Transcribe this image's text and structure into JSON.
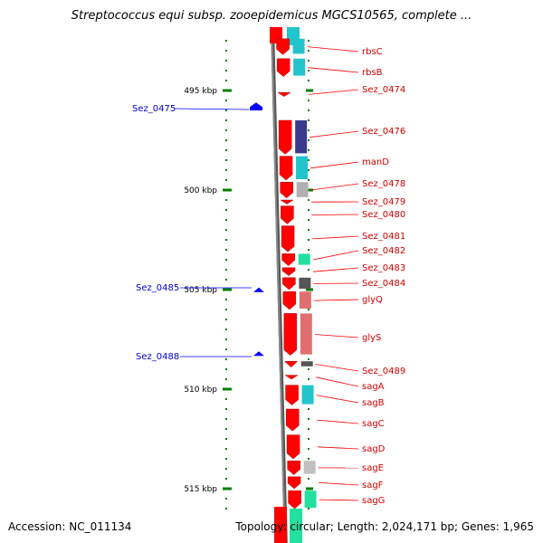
{
  "title": "Streptococcus equi subsp. zooepidemicus MGCS10565, complete ...",
  "footer": {
    "accession": "Accession: NC_011134",
    "stats": "Topology: circular; Length: 2,024,171 bp; Genes: 1,965"
  },
  "colors": {
    "backbone": "#888888",
    "forward_gene": "#ff0000",
    "forward_label": "#d00000",
    "reverse_gene": "#0000ff",
    "reverse_label": "#0000cc",
    "ruler": "#008000"
  },
  "ruler": {
    "ticks": [
      {
        "label": "495 kbp",
        "kbp": 495
      },
      {
        "label": "500 kbp",
        "kbp": 500
      },
      {
        "label": "505 kbp",
        "kbp": 505
      },
      {
        "label": "510 kbp",
        "kbp": 510
      },
      {
        "label": "515 kbp",
        "kbp": 515
      }
    ]
  },
  "forward_genes": [
    {
      "label": "rbsC",
      "start_kbp": 492.4,
      "end_kbp": 493.2,
      "cog_color": "#22c4cc"
    },
    {
      "label": "rbsB",
      "start_kbp": 493.4,
      "end_kbp": 494.3,
      "cog_color": "#22c4cc"
    },
    {
      "label": "Sez_0474",
      "start_kbp": 495.1,
      "end_kbp": 495.3,
      "cog_color": ""
    },
    {
      "label": "Sez_0476",
      "start_kbp": 496.5,
      "end_kbp": 498.2,
      "cog_color": "#3a3a8c"
    },
    {
      "label": "manD",
      "start_kbp": 498.3,
      "end_kbp": 499.5,
      "cog_color": "#22c4cc"
    },
    {
      "label": "Sez_0478",
      "start_kbp": 499.6,
      "end_kbp": 500.4,
      "cog_color": "#b0b0b0"
    },
    {
      "label": "Sez_0479",
      "start_kbp": 500.5,
      "end_kbp": 500.7,
      "cog_color": ""
    },
    {
      "label": "Sez_0480",
      "start_kbp": 500.8,
      "end_kbp": 501.7,
      "cog_color": ""
    },
    {
      "label": "Sez_0481",
      "start_kbp": 501.8,
      "end_kbp": 503.1,
      "cog_color": ""
    },
    {
      "label": "Sez_0482",
      "start_kbp": 503.2,
      "end_kbp": 503.8,
      "cog_color": "#22e0a0"
    },
    {
      "label": "Sez_0483",
      "start_kbp": 503.9,
      "end_kbp": 504.3,
      "cog_color": ""
    },
    {
      "label": "Sez_0484",
      "start_kbp": 504.4,
      "end_kbp": 505.0,
      "cog_color": "#555555"
    },
    {
      "label": "glyQ",
      "start_kbp": 505.1,
      "end_kbp": 506.0,
      "cog_color": "#e07070"
    },
    {
      "label": "glyS",
      "start_kbp": 506.2,
      "end_kbp": 508.3,
      "cog_color": "#e07070"
    },
    {
      "label": "Sez_0489",
      "start_kbp": 508.6,
      "end_kbp": 508.9,
      "cog_color": "#555555"
    },
    {
      "label": "sagA",
      "start_kbp": 509.3,
      "end_kbp": 509.5,
      "cog_color": ""
    },
    {
      "label": "sagB",
      "start_kbp": 509.8,
      "end_kbp": 510.8,
      "cog_color": "#22c4cc"
    },
    {
      "label": "sagC",
      "start_kbp": 511.0,
      "end_kbp": 512.1,
      "cog_color": ""
    },
    {
      "label": "sagD",
      "start_kbp": 512.3,
      "end_kbp": 513.5,
      "cog_color": ""
    },
    {
      "label": "sagE",
      "start_kbp": 513.6,
      "end_kbp": 514.3,
      "cog_color": "#c0c0c0"
    },
    {
      "label": "sagF",
      "start_kbp": 514.4,
      "end_kbp": 515.0,
      "cog_color": ""
    },
    {
      "label": "sagG",
      "start_kbp": 515.1,
      "end_kbp": 516.0,
      "cog_color": "#22e0a0"
    }
  ],
  "reverse_genes": [
    {
      "label": "Sez_0475",
      "start_kbp": 495.6,
      "end_kbp": 496.0
    },
    {
      "label": "Sez_0485",
      "start_kbp": 504.9,
      "end_kbp": 505.0
    },
    {
      "label": "Sez_0488",
      "start_kbp": 508.1,
      "end_kbp": 508.2
    }
  ]
}
